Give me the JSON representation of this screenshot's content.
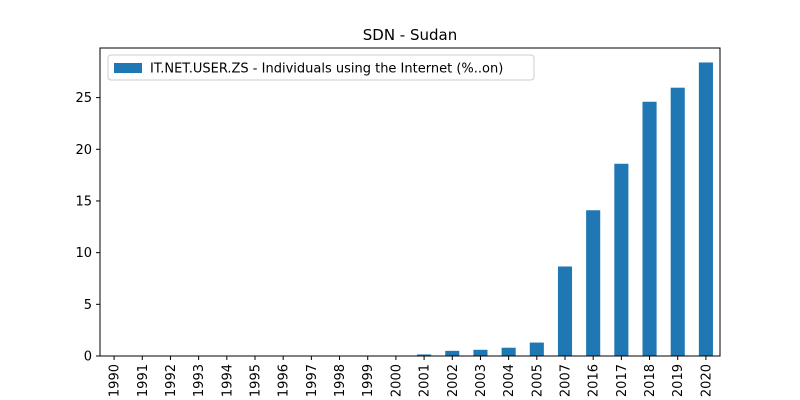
{
  "chart_data": {
    "type": "bar",
    "title": "SDN - Sudan",
    "xlabel": "",
    "ylabel": "",
    "categories": [
      "1990",
      "1991",
      "1992",
      "1993",
      "1994",
      "1995",
      "1996",
      "1997",
      "1998",
      "1999",
      "2000",
      "2001",
      "2002",
      "2003",
      "2004",
      "2005",
      "2007",
      "2016",
      "2017",
      "2018",
      "2019",
      "2020"
    ],
    "series": [
      {
        "name": "IT.NET.USER.ZS - Individuals using the Internet (%..on)",
        "values": [
          0,
          0,
          0,
          0,
          0,
          0,
          0,
          0,
          0,
          0.03,
          0.03,
          0.15,
          0.5,
          0.6,
          0.8,
          1.3,
          8.66,
          14.1,
          18.6,
          24.6,
          25.96,
          28.4
        ],
        "color": "#1f77b4"
      }
    ],
    "ylim": [
      0,
      29.8
    ],
    "yticks": [
      0,
      5,
      10,
      15,
      20,
      25
    ],
    "grid": false,
    "legend": "top-left"
  }
}
